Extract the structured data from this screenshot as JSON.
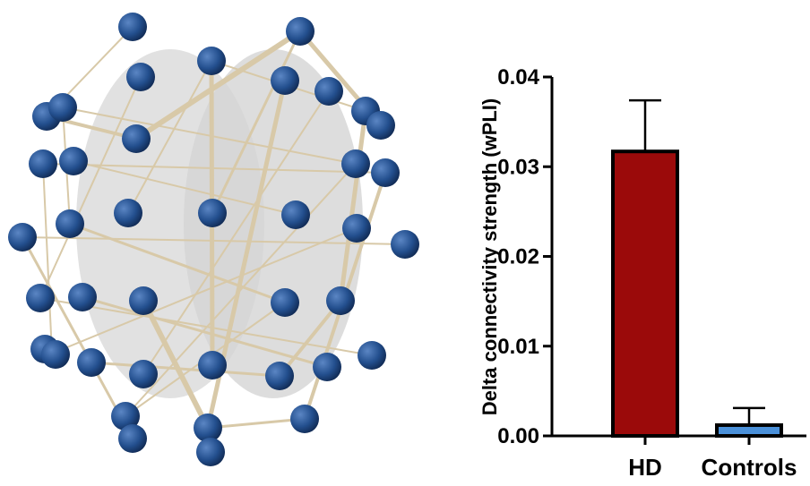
{
  "chart_data": {
    "type": "bar",
    "y_label": "Delta connectivity strength (wPLI)",
    "categories": [
      "HD",
      "Controls"
    ],
    "values": [
      0.0317,
      0.0012
    ],
    "errors": [
      0.0057,
      0.0019
    ],
    "colors": [
      "#9b0a0a",
      "#4a90d9"
    ],
    "ylim": [
      0,
      0.04
    ],
    "yticks": [
      {
        "value": 0,
        "label": "0.00"
      },
      0.01,
      0.02,
      0.03,
      0.04
    ]
  }
}
